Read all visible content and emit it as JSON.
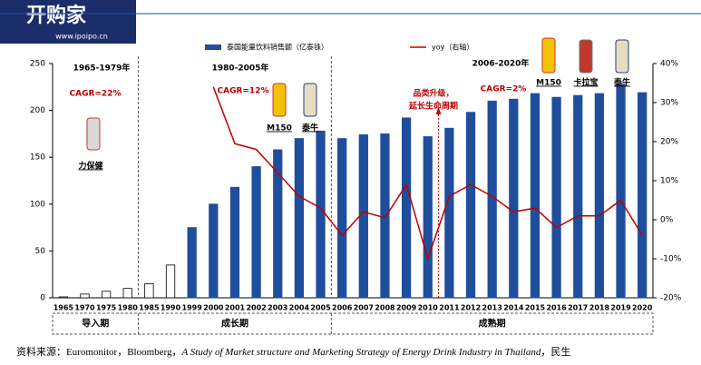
{
  "watermark": {
    "brand": "开购家",
    "url": "www.ipoipo.cn"
  },
  "chart_data": {
    "type": "bar-line",
    "categories": [
      "1965",
      "1970",
      "1975",
      "1980",
      "1985",
      "1990",
      "1999",
      "2000",
      "2001",
      "2002",
      "2003",
      "2004",
      "2005",
      "2006",
      "2007",
      "2008",
      "2009",
      "2010",
      "2011",
      "2012",
      "2013",
      "2014",
      "2015",
      "2016",
      "2017",
      "2018",
      "2019",
      "2020"
    ],
    "series": [
      {
        "name": "泰国能量饮料销售额（亿泰铢）",
        "type": "bar",
        "color": "#1f4e9c",
        "bar_colors": [
          "#ffffff",
          "#ffffff",
          "#ffffff",
          "#ffffff",
          "#ffffff",
          "#ffffff",
          "#1f4e9c",
          "#1f4e9c",
          "#1f4e9c",
          "#1f4e9c",
          "#1f4e9c",
          "#1f4e9c",
          "#1f4e9c",
          "#1f4e9c",
          "#1f4e9c",
          "#1f4e9c",
          "#1f4e9c",
          "#1f4e9c",
          "#1f4e9c",
          "#1f4e9c",
          "#1f4e9c",
          "#1f4e9c",
          "#1f4e9c",
          "#1f4e9c",
          "#1f4e9c",
          "#1f4e9c",
          "#1f4e9c",
          "#1f4e9c"
        ],
        "values": [
          1,
          4,
          7,
          10,
          15,
          35,
          75,
          100,
          118,
          140,
          158,
          170,
          178,
          170,
          174,
          175,
          192,
          172,
          181,
          198,
          210,
          212,
          218,
          214,
          216,
          218,
          228,
          219
        ]
      },
      {
        "name": "yoy（右轴）",
        "type": "line",
        "axis": "y2",
        "color": "#c00000",
        "values": [
          null,
          null,
          null,
          null,
          null,
          null,
          null,
          34,
          19.5,
          18,
          12,
          6,
          3,
          -4,
          2,
          0.5,
          9,
          -10,
          6,
          9,
          6,
          2,
          3,
          -2,
          1,
          1,
          5,
          -4
        ]
      }
    ],
    "ylim": [
      0,
      250
    ],
    "yticks": [
      0,
      50,
      100,
      150,
      200,
      250
    ],
    "y2lim": [
      -20,
      40
    ],
    "y2ticks": [
      {
        "value": -20,
        "label": "-20%"
      },
      {
        "value": -10,
        "label": "-10%"
      },
      {
        "value": 0,
        "label": "0%"
      },
      {
        "value": 10,
        "label": "10%"
      },
      {
        "value": 20,
        "label": "20%"
      },
      {
        "value": 30,
        "label": "30%"
      },
      {
        "value": 40,
        "label": "40%"
      }
    ],
    "annotations": [
      "1965-1979年",
      "CAGR=22%",
      "力保健",
      "1980-2005年",
      "CAGR=12%",
      "M150",
      "泰牛",
      "2006-2020年",
      "CAGR=2%",
      "M150",
      "卡拉宝",
      "泰牛",
      "品类升级，",
      "延长生命周期"
    ],
    "phases": [
      "导入期",
      "成长期",
      "成熟期"
    ],
    "source": [
      "资料来源：Euromonitor，Bloomberg，",
      "A Study of Market structure and Marketing Strategy of Energy Drink Industry in Thailand",
      "，民生"
    ]
  }
}
